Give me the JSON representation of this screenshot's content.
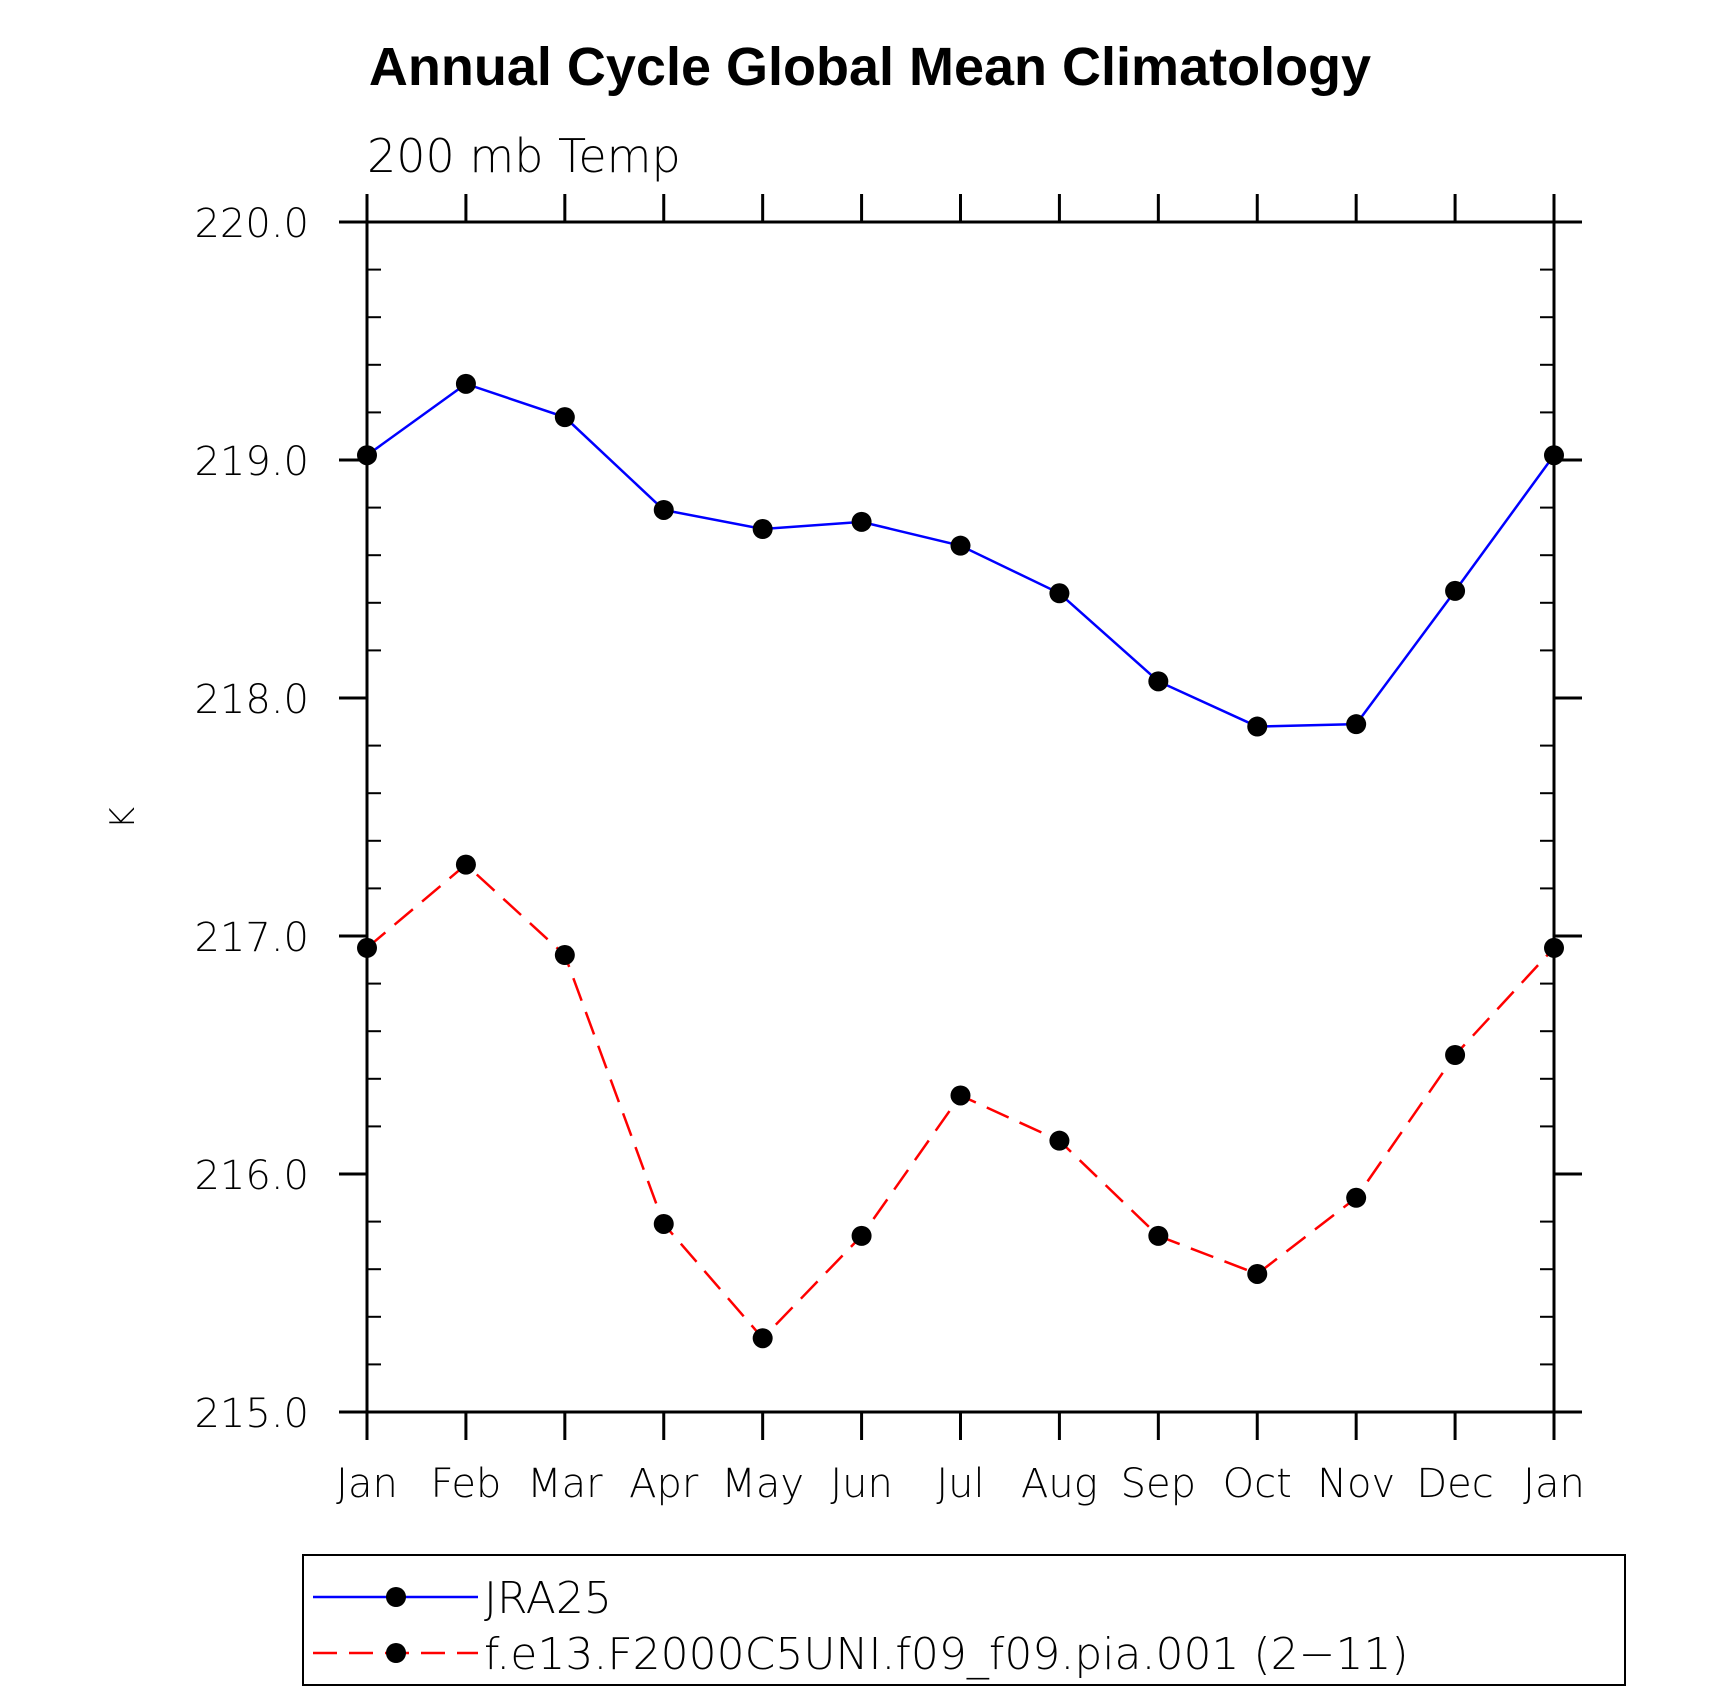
{
  "chart_data": {
    "type": "line",
    "title": "Annual Cycle Global Mean Climatology",
    "subtitle": "200 mb Temp",
    "xlabel": "",
    "ylabel": "K",
    "categories": [
      "Jan",
      "Feb",
      "Mar",
      "Apr",
      "May",
      "Jun",
      "Jul",
      "Aug",
      "Sep",
      "Oct",
      "Nov",
      "Dec",
      "Jan"
    ],
    "ylim": [
      215.0,
      220.0
    ],
    "yticks": [
      "215.0",
      "216.0",
      "217.0",
      "218.0",
      "219.0",
      "220.0"
    ],
    "ytick_values": [
      215.0,
      216.0,
      217.0,
      218.0,
      219.0,
      220.0
    ],
    "y_minor_step": 0.2,
    "grid": false,
    "legend_position": "bottom",
    "series": [
      {
        "name": "JRA25",
        "color": "#0000ff",
        "style": "solid",
        "marker": "filled-circle",
        "values": [
          219.02,
          219.32,
          219.18,
          218.79,
          218.71,
          218.74,
          218.64,
          218.44,
          218.07,
          217.88,
          217.89,
          218.45,
          219.02
        ]
      },
      {
        "name": "f.e13.F2000C5UNI.f09_f09.pia.001 (2−11)",
        "color": "#ff0000",
        "style": "dashed",
        "marker": "filled-circle",
        "values": [
          216.95,
          217.3,
          216.92,
          215.79,
          215.31,
          215.74,
          216.33,
          216.14,
          215.74,
          215.58,
          215.9,
          216.5,
          216.95
        ]
      }
    ]
  }
}
